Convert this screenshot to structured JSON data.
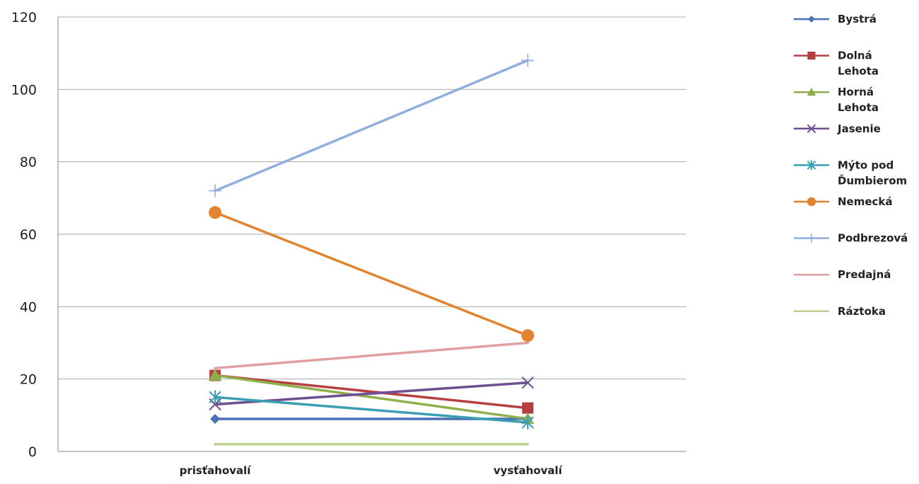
{
  "chart_data": {
    "type": "line",
    "title": "",
    "xlabel": "",
    "ylabel": "",
    "categories": [
      "prisťahovalí",
      "vysťahovalí"
    ],
    "ylim": [
      0,
      120
    ],
    "yticks": [
      0,
      20,
      40,
      60,
      80,
      100,
      120
    ],
    "grid": true,
    "legend_position": "right",
    "series": [
      {
        "name": "Bystrá",
        "values": [
          9,
          9
        ],
        "color": "#4a6fb5",
        "marker": "diamond",
        "legend_lines": [
          "Bystrá"
        ]
      },
      {
        "name": "Dolná Lehota",
        "values": [
          21,
          12
        ],
        "color": "#b5403f",
        "marker": "square",
        "legend_lines": [
          "Dolná",
          "Lehota"
        ]
      },
      {
        "name": "Horná Lehota",
        "values": [
          21,
          9
        ],
        "color": "#8faf4a",
        "marker": "triangle",
        "legend_lines": [
          "Horná",
          "Lehota"
        ]
      },
      {
        "name": "Jasenie",
        "values": [
          13,
          19
        ],
        "color": "#6e4f92",
        "marker": "x",
        "legend_lines": [
          "Jasenie"
        ]
      },
      {
        "name": "Mýto pod Ďumbierom",
        "values": [
          15,
          8
        ],
        "color": "#3a9fb4",
        "marker": "star",
        "legend_lines": [
          "Mýto pod",
          "Ďumbierom"
        ]
      },
      {
        "name": "Nemecká",
        "values": [
          66,
          32
        ],
        "color": "#e2832f",
        "marker": "circle",
        "legend_lines": [
          "Nemecká"
        ]
      },
      {
        "name": "Podbrezová",
        "values": [
          72,
          108
        ],
        "color": "#90aee0",
        "marker": "plus",
        "legend_lines": [
          "Podbrezová"
        ]
      },
      {
        "name": "Predajná",
        "values": [
          23,
          30
        ],
        "color": "#e0a0a0",
        "marker": "none",
        "legend_lines": [
          "Predajná"
        ]
      },
      {
        "name": "Ráztoka",
        "values": [
          2,
          2
        ],
        "color": "#bcd190",
        "marker": "none",
        "legend_lines": [
          "Ráztoka"
        ]
      }
    ]
  }
}
